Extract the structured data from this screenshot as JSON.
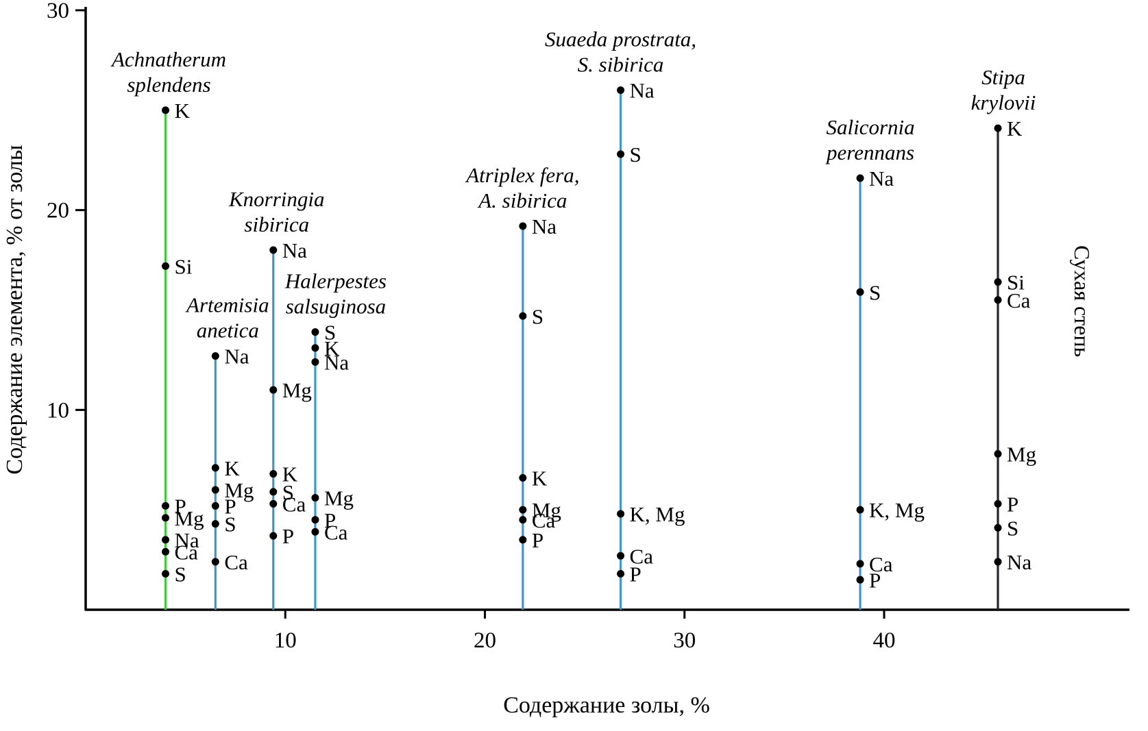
{
  "chart_data": {
    "type": "scatter",
    "subtype": "stem-plot-per-species",
    "title": "",
    "xlabel": "Содержание золы, %",
    "ylabel": "Содержание элемента, % от золы",
    "right_label": "Сухая степь",
    "xlim": [
      0,
      48.5
    ],
    "ylim": [
      0,
      30
    ],
    "x_ticks": [
      10,
      20,
      30,
      40
    ],
    "y_ticks": [
      10,
      20,
      30
    ],
    "grid": false,
    "legend": "none",
    "colors": {
      "axis": "#000000",
      "dot": "#000000",
      "green_stem": "#3ecb3e",
      "blue_stem": "#3f96c9",
      "dark_stem": "#2a2430"
    },
    "series": [
      {
        "name": "Achnatherum splendens",
        "name_lines": [
          "Achnatherum",
          "splendens"
        ],
        "x": 4.0,
        "stem_color": "#3ecb3e",
        "name_dx": 5,
        "points": [
          {
            "label": "K",
            "y": 25.0
          },
          {
            "label": "Si",
            "y": 17.2
          },
          {
            "label": "P",
            "y": 5.2
          },
          {
            "label": "Mg",
            "y": 4.6
          },
          {
            "label": "Na",
            "y": 3.5
          },
          {
            "label": "Ca",
            "y": 2.9
          },
          {
            "label": "S",
            "y": 1.8
          }
        ]
      },
      {
        "name": "Artemisia anetica",
        "name_lines": [
          "Artemisia",
          "anetica"
        ],
        "x": 6.5,
        "stem_color": "#3f96c9",
        "name_dx": 18,
        "points": [
          {
            "label": "Na",
            "y": 12.7
          },
          {
            "label": "K",
            "y": 7.1
          },
          {
            "label": "Mg",
            "y": 6.0
          },
          {
            "label": "P",
            "y": 5.2
          },
          {
            "label": "S",
            "y": 4.3
          },
          {
            "label": "Ca",
            "y": 2.4
          }
        ]
      },
      {
        "name": "Knorringia sibirica",
        "name_lines": [
          "Knorringia",
          "sibirica"
        ],
        "x": 9.4,
        "stem_color": "#3f96c9",
        "name_dx": 5,
        "points": [
          {
            "label": "Na",
            "y": 18.0
          },
          {
            "label": "Mg",
            "y": 11.0
          },
          {
            "label": "K",
            "y": 6.8
          },
          {
            "label": "S",
            "y": 5.9
          },
          {
            "label": "Ca",
            "y": 5.3
          },
          {
            "label": "P",
            "y": 3.7
          }
        ]
      },
      {
        "name": "Halerpestes salsuginosa",
        "name_lines": [
          "Halerpestes",
          "salsuginosa"
        ],
        "x": 11.5,
        "stem_color": "#3f96c9",
        "name_dx": 30,
        "points": [
          {
            "label": "S",
            "y": 13.9
          },
          {
            "label": "K",
            "y": 13.1
          },
          {
            "label": "Na",
            "y": 12.4
          },
          {
            "label": "Mg",
            "y": 5.6
          },
          {
            "label": "P",
            "y": 4.5
          },
          {
            "label": "Ca",
            "y": 3.9
          }
        ]
      },
      {
        "name": "Atriplex fera, A. sibirica",
        "name_lines": [
          "Atriplex fera,",
          "A. sibirica"
        ],
        "x": 21.9,
        "stem_color": "#3f96c9",
        "name_dx": 0,
        "points": [
          {
            "label": "Na",
            "y": 19.2
          },
          {
            "label": "S",
            "y": 14.7
          },
          {
            "label": "K",
            "y": 6.6
          },
          {
            "label": "Mg",
            "y": 5.0
          },
          {
            "label": "Ca",
            "y": 4.5
          },
          {
            "label": "P",
            "y": 3.5
          }
        ]
      },
      {
        "name": "Suaeda prostrata, S. sibirica",
        "name_lines": [
          "Suaeda prostrata,",
          "S. sibirica"
        ],
        "x": 26.8,
        "stem_color": "#3f96c9",
        "name_dx": 0,
        "points": [
          {
            "label": "Na",
            "y": 26.0
          },
          {
            "label": "S",
            "y": 22.8
          },
          {
            "label": "K, Mg",
            "y": 4.8
          },
          {
            "label": "Ca",
            "y": 2.7
          },
          {
            "label": "P",
            "y": 1.8
          }
        ]
      },
      {
        "name": "Salicornia perennans",
        "name_lines": [
          "Salicornia",
          "perennans"
        ],
        "x": 38.8,
        "stem_color": "#3f96c9",
        "name_dx": 15,
        "points": [
          {
            "label": "Na",
            "y": 21.6
          },
          {
            "label": "S",
            "y": 15.9
          },
          {
            "label": "K, Mg",
            "y": 5.0
          },
          {
            "label": "Ca",
            "y": 2.3
          },
          {
            "label": "P",
            "y": 1.5
          }
        ]
      },
      {
        "name": "Stipa krylovii",
        "name_lines": [
          "Stipa",
          "krylovii"
        ],
        "x": 45.7,
        "stem_color": "#2a2430",
        "name_dx": 8,
        "points": [
          {
            "label": "K",
            "y": 24.1
          },
          {
            "label": "Si",
            "y": 16.4
          },
          {
            "label": "Ca",
            "y": 15.5
          },
          {
            "label": "Mg",
            "y": 7.8
          },
          {
            "label": "P",
            "y": 5.3
          },
          {
            "label": "S",
            "y": 4.1
          },
          {
            "label": "Na",
            "y": 2.4
          }
        ]
      }
    ]
  }
}
